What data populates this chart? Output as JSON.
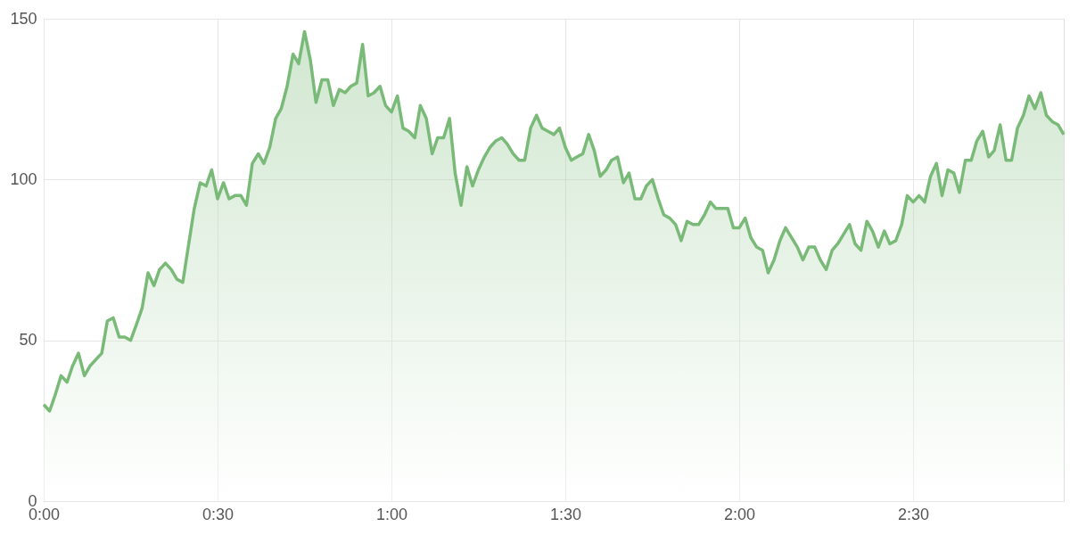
{
  "chart_data": {
    "type": "area",
    "xlim": [
      0,
      2.933
    ],
    "ylim": [
      0,
      150
    ],
    "xticks": [
      {
        "value": 0,
        "label": "0:00"
      },
      {
        "value": 0.5,
        "label": "0:30"
      },
      {
        "value": 1,
        "label": "1:00"
      },
      {
        "value": 1.5,
        "label": "1:30"
      },
      {
        "value": 2,
        "label": "2:00"
      },
      {
        "value": 2.5,
        "label": "2:30"
      }
    ],
    "yticks": [
      0,
      50,
      100,
      150
    ],
    "grid": true,
    "marker": "none",
    "line_style": "solid",
    "series": [
      {
        "color": "#7aba78",
        "x": [
          0,
          0.017,
          0.033,
          0.05,
          0.067,
          0.083,
          0.1,
          0.117,
          0.133,
          0.15,
          0.167,
          0.183,
          0.2,
          0.217,
          0.233,
          0.25,
          0.267,
          0.283,
          0.3,
          0.317,
          0.333,
          0.35,
          0.367,
          0.383,
          0.4,
          0.417,
          0.433,
          0.45,
          0.467,
          0.483,
          0.5,
          0.517,
          0.533,
          0.55,
          0.567,
          0.583,
          0.6,
          0.617,
          0.633,
          0.65,
          0.667,
          0.683,
          0.7,
          0.717,
          0.733,
          0.75,
          0.767,
          0.783,
          0.8,
          0.817,
          0.833,
          0.85,
          0.867,
          0.883,
          0.9,
          0.917,
          0.933,
          0.95,
          0.967,
          0.983,
          1,
          1.017,
          1.033,
          1.05,
          1.067,
          1.083,
          1.1,
          1.117,
          1.133,
          1.15,
          1.167,
          1.183,
          1.2,
          1.217,
          1.233,
          1.25,
          1.267,
          1.283,
          1.3,
          1.317,
          1.333,
          1.35,
          1.367,
          1.383,
          1.4,
          1.417,
          1.433,
          1.45,
          1.467,
          1.483,
          1.5,
          1.517,
          1.533,
          1.55,
          1.567,
          1.583,
          1.6,
          1.617,
          1.633,
          1.65,
          1.667,
          1.683,
          1.7,
          1.717,
          1.733,
          1.75,
          1.767,
          1.783,
          1.8,
          1.817,
          1.833,
          1.85,
          1.867,
          1.883,
          1.9,
          1.917,
          1.933,
          1.95,
          1.967,
          1.983,
          2,
          2.017,
          2.033,
          2.05,
          2.067,
          2.083,
          2.1,
          2.117,
          2.133,
          2.15,
          2.167,
          2.183,
          2.2,
          2.217,
          2.233,
          2.25,
          2.267,
          2.283,
          2.3,
          2.317,
          2.333,
          2.35,
          2.367,
          2.383,
          2.4,
          2.417,
          2.433,
          2.45,
          2.467,
          2.483,
          2.5,
          2.517,
          2.533,
          2.55,
          2.567,
          2.583,
          2.6,
          2.617,
          2.633,
          2.65,
          2.667,
          2.683,
          2.7,
          2.717,
          2.733,
          2.75,
          2.767,
          2.783,
          2.8,
          2.817,
          2.833,
          2.85,
          2.867,
          2.883,
          2.9,
          2.917,
          2.933
        ],
        "values": [
          30,
          28,
          33,
          39,
          37,
          42,
          46,
          39,
          42,
          44,
          46,
          56,
          57,
          51,
          51,
          50,
          55,
          60,
          71,
          67,
          72,
          74,
          72,
          69,
          68,
          80,
          91,
          99,
          98,
          103,
          94,
          99,
          94,
          95,
          95,
          92,
          105,
          108,
          105,
          110,
          119,
          122,
          129,
          139,
          136,
          146,
          137,
          124,
          131,
          131,
          123,
          128,
          127,
          129,
          130,
          142,
          126,
          127,
          129,
          123,
          121,
          126,
          116,
          115,
          113,
          123,
          119,
          108,
          113,
          113,
          119,
          102,
          92,
          104,
          98,
          103,
          107,
          110,
          112,
          113,
          111,
          108,
          106,
          106,
          116,
          120,
          116,
          115,
          114,
          116,
          110,
          106,
          107,
          108,
          114,
          109,
          101,
          103,
          106,
          107,
          99,
          102,
          94,
          94,
          98,
          100,
          94,
          89,
          88,
          86,
          81,
          87,
          86,
          86,
          89,
          93,
          91,
          91,
          91,
          85,
          85,
          88,
          82,
          79,
          78,
          71,
          75,
          81,
          85,
          82,
          79,
          75,
          79,
          79,
          75,
          72,
          78,
          80,
          83,
          86,
          80,
          78,
          87,
          84,
          79,
          84,
          80,
          81,
          86,
          95,
          93,
          95,
          93,
          101,
          105,
          95,
          103,
          102,
          96,
          106,
          106,
          112,
          115,
          107,
          109,
          117,
          106,
          106,
          116,
          120,
          126,
          122,
          127,
          120,
          118,
          117,
          114
        ]
      }
    ]
  }
}
